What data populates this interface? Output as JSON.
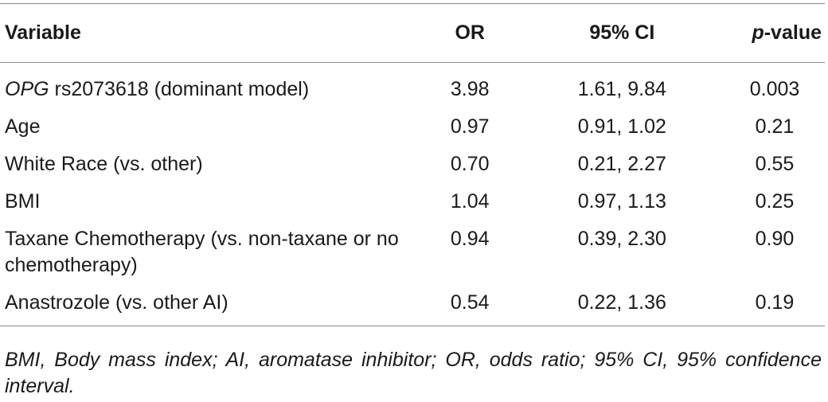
{
  "table": {
    "headers": {
      "variable": "Variable",
      "or": "OR",
      "ci": "95% CI",
      "p_italic": "p",
      "p_rest": "-value"
    },
    "rows": [
      {
        "variable_italic": "OPG",
        "variable_rest": " rs2073618 (dominant model)",
        "or": "3.98",
        "ci": "1.61, 9.84",
        "p": "0.003"
      },
      {
        "variable_italic": "",
        "variable_rest": "Age",
        "or": "0.97",
        "ci": "0.91, 1.02",
        "p": "0.21"
      },
      {
        "variable_italic": "",
        "variable_rest": "White Race (vs. other)",
        "or": "0.70",
        "ci": "0.21, 2.27",
        "p": "0.55"
      },
      {
        "variable_italic": "",
        "variable_rest": "BMI",
        "or": "1.04",
        "ci": "0.97, 1.13",
        "p": "0.25"
      },
      {
        "variable_italic": "",
        "variable_rest": "Taxane Chemotherapy (vs. non-taxane or no chemotherapy)",
        "or": "0.94",
        "ci": "0.39, 2.30",
        "p": "0.90"
      },
      {
        "variable_italic": "",
        "variable_rest": "Anastrozole (vs. other AI)",
        "or": "0.54",
        "ci": "0.22, 1.36",
        "p": "0.19"
      }
    ]
  },
  "footnote": "BMI, Body mass index; AI, aromatase inhibitor; OR, odds ratio; 95% CI, 95% confidence interval."
}
